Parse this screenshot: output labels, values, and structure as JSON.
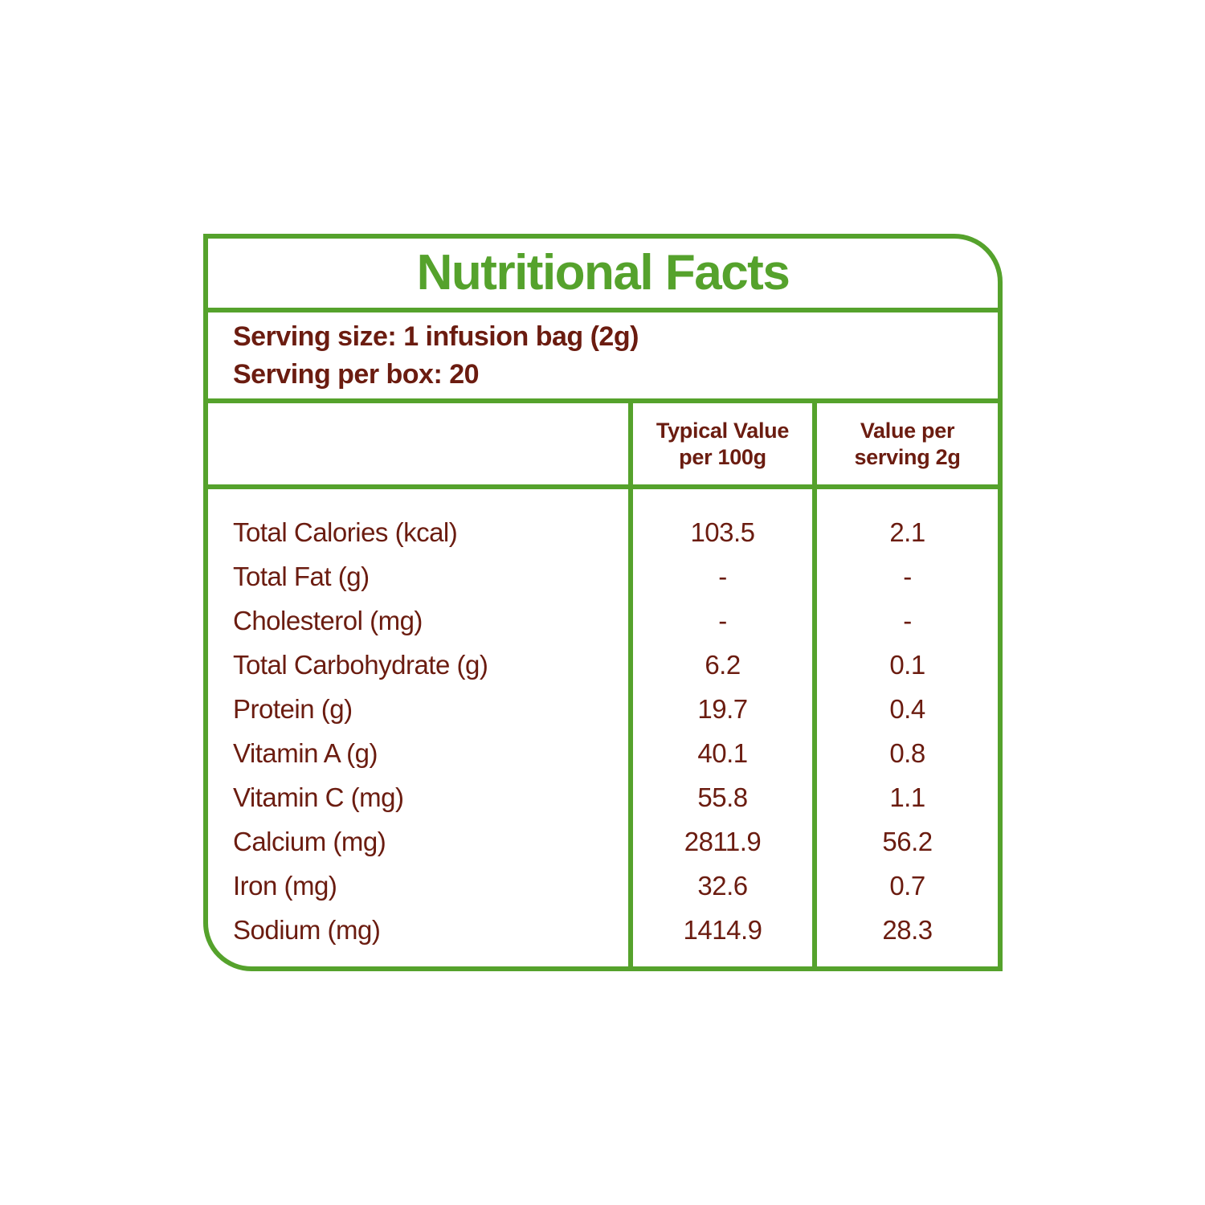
{
  "colors": {
    "green": "#55a22c",
    "maroon": "#6b1c10"
  },
  "title": "Nutritional Facts",
  "serving": {
    "size_line": "Serving size: 1 infusion bag (2g)",
    "per_box_line": "Serving per box: 20"
  },
  "table": {
    "header": {
      "col2_line1": "Typical Value",
      "col2_line2": "per 100g",
      "col3_line1": "Value per",
      "col3_line2": "serving 2g"
    },
    "rows": [
      {
        "label": "Total Calories (kcal)",
        "per100g": "103.5",
        "perServing": "2.1"
      },
      {
        "label": "Total Fat (g)",
        "per100g": "-",
        "perServing": "-"
      },
      {
        "label": "Cholesterol (mg)",
        "per100g": "-",
        "perServing": "-"
      },
      {
        "label": "Total Carbohydrate (g)",
        "per100g": "6.2",
        "perServing": "0.1"
      },
      {
        "label": "Protein (g)",
        "per100g": "19.7",
        "perServing": "0.4"
      },
      {
        "label": "Vitamin A (g)",
        "per100g": "40.1",
        "perServing": "0.8"
      },
      {
        "label": "Vitamin C (mg)",
        "per100g": "55.8",
        "perServing": "1.1"
      },
      {
        "label": "Calcium (mg)",
        "per100g": "2811.9",
        "perServing": "56.2"
      },
      {
        "label": "Iron (mg)",
        "per100g": "32.6",
        "perServing": "0.7"
      },
      {
        "label": "Sodium (mg)",
        "per100g": "1414.9",
        "perServing": "28.3"
      }
    ]
  }
}
